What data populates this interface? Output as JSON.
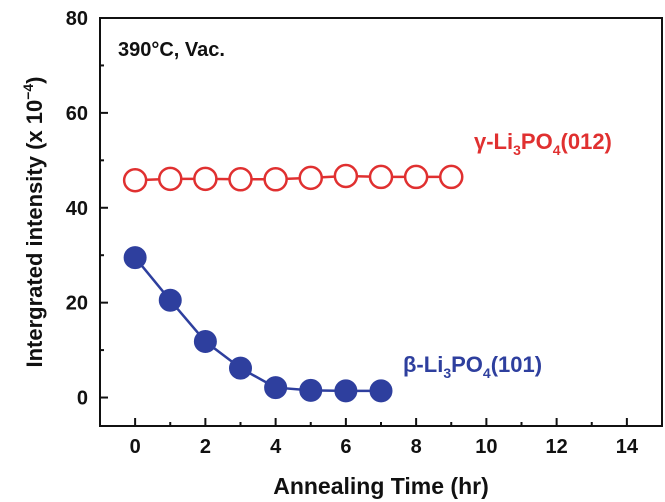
{
  "chart_data": {
    "type": "line",
    "annotation": "390°C, Vac.",
    "xlabel": "Annealing Time (hr)",
    "ylabel": {
      "text": "Intergrated intensity (x 10",
      "exponent": "−4",
      "suffix": ")"
    },
    "xlim": [
      -1,
      15
    ],
    "ylim": [
      -6,
      80
    ],
    "xticks": [
      0,
      2,
      4,
      6,
      8,
      10,
      12,
      14
    ],
    "yticks": [
      0,
      20,
      40,
      60,
      80
    ],
    "grid": false,
    "series": [
      {
        "name": "γ-Li3PO4(012)",
        "label": {
          "prefix": "γ-Li",
          "sub1": "3",
          "mid": "PO",
          "sub2": "4",
          "suffix": "(012)"
        },
        "color": "#e03030",
        "marker": "open-circle",
        "x": [
          0,
          1,
          2,
          3,
          4,
          5,
          6,
          7,
          8,
          9
        ],
        "y": [
          45.8,
          46.1,
          46.1,
          46.0,
          46.0,
          46.3,
          46.7,
          46.5,
          46.5,
          46.5
        ]
      },
      {
        "name": "β-Li3PO4(101)",
        "label": {
          "prefix": "β-Li",
          "sub1": "3",
          "mid": "PO",
          "sub2": "4",
          "suffix": "(101)"
        },
        "color": "#2e3f9e",
        "marker": "filled-circle",
        "x": [
          0,
          1,
          2,
          3,
          4,
          5,
          6,
          7
        ],
        "y": [
          29.5,
          20.5,
          11.8,
          6.2,
          2.1,
          1.5,
          1.4,
          1.4
        ]
      }
    ]
  }
}
